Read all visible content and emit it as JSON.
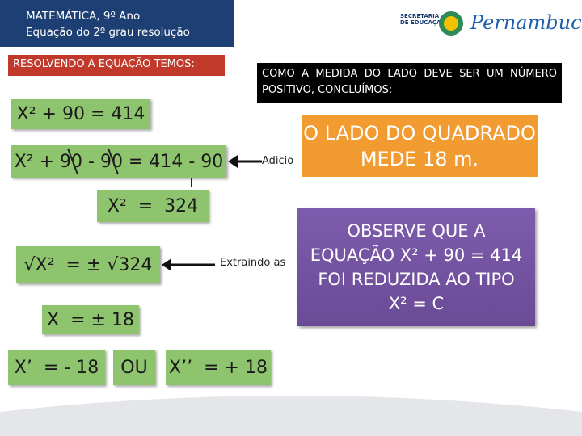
{
  "header": {
    "title_lines": [
      "MATEMÁTICA, 9º Ano",
      "Equação do 2º grau resolução"
    ]
  },
  "logo": {
    "agency_lines": [
      "SECRETARIA",
      "DE EDUCAÇÃO"
    ],
    "state": "Pernambuco"
  },
  "intro": "RESOLVENDO A EQUAÇÃO TEMOS:",
  "steps": [
    "X² + 90 = 414",
    "X² + 90 - 90 = 414 - 90",
    "X²  =  324",
    "√X²  = ± √324",
    "X  = ± 18"
  ],
  "roots": {
    "first": "X’  = - 18",
    "joiner": "OU",
    "second": "X’’  = + 18"
  },
  "notes": [
    "Adicio",
    "Extraindo as"
  ],
  "conclusion": "COMO A MEDIDA DO LADO DEVE SER UM NÚMERO POSITIVO, CONCLUÍMOS:",
  "result_lines": [
    "O LADO DO QUADRADO",
    "MEDE 18 m."
  ],
  "observation_lines": [
    "OBSERVE QUE A",
    "EQUAÇÃO X² + 90 = 414",
    "FOI REDUZIDA AO TIPO",
    "X² = C"
  ]
}
